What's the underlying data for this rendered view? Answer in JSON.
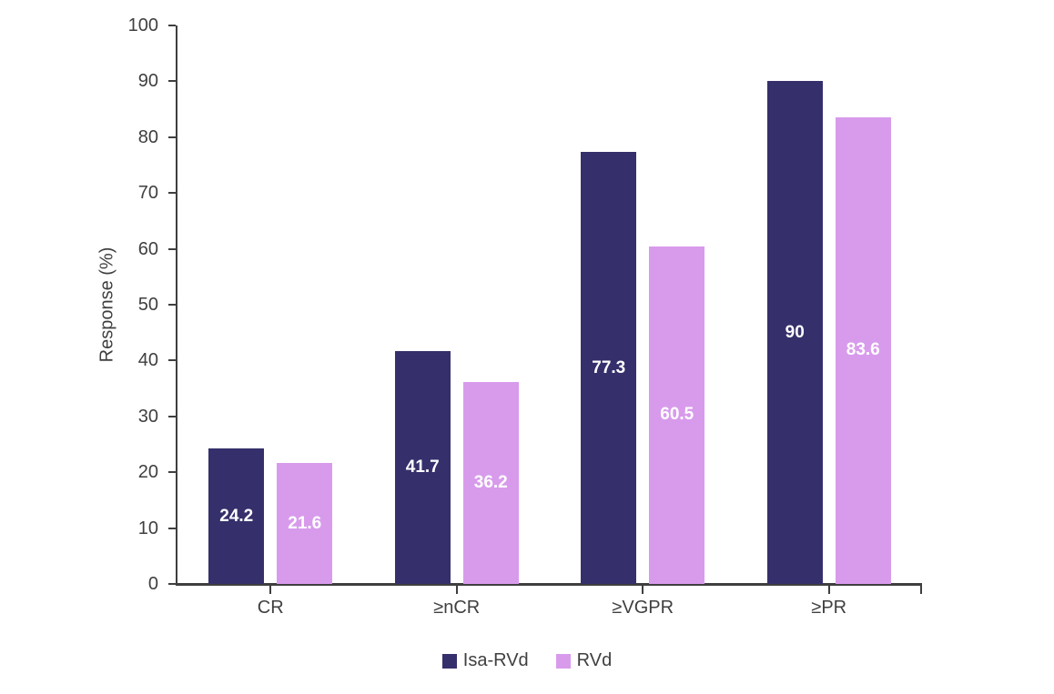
{
  "chart_data": {
    "type": "bar",
    "title": "",
    "xlabel": "",
    "ylabel": "Response (%)",
    "ylim": [
      0,
      100
    ],
    "yticks": [
      0,
      10,
      20,
      30,
      40,
      50,
      60,
      70,
      80,
      90,
      100
    ],
    "grid": false,
    "legend_position": "bottom",
    "categories": [
      "CR",
      "≥nCR",
      "≥VGPR",
      "≥PR"
    ],
    "series": [
      {
        "name": "Isa-RVd",
        "color": "#35306b",
        "values": [
          24.2,
          41.7,
          77.3,
          90
        ],
        "labels": [
          "24.2",
          "41.7",
          "77.3",
          "90"
        ]
      },
      {
        "name": "RVd",
        "color": "#d89bec",
        "values": [
          21.6,
          36.2,
          60.5,
          83.6
        ],
        "labels": [
          "21.6",
          "36.2",
          "60.5",
          "83.6"
        ]
      }
    ],
    "value_label_color": "#ffffff",
    "axis_color": "#3f3f3f",
    "text_color": "#3f3f3f",
    "background_color": "#ffffff"
  }
}
